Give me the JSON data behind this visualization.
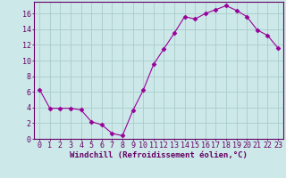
{
  "x": [
    0,
    1,
    2,
    3,
    4,
    5,
    6,
    7,
    8,
    9,
    10,
    11,
    12,
    13,
    14,
    15,
    16,
    17,
    18,
    19,
    20,
    21,
    22,
    23
  ],
  "y": [
    6.3,
    3.9,
    3.9,
    3.9,
    3.7,
    2.2,
    1.8,
    0.7,
    0.4,
    3.6,
    6.2,
    9.5,
    11.5,
    13.5,
    15.6,
    15.3,
    16.0,
    16.5,
    17.0,
    16.4,
    15.6,
    13.9,
    13.2,
    11.6
  ],
  "line_color": "#990099",
  "marker": "D",
  "marker_size": 2.5,
  "bg_color": "#cce8e8",
  "grid_color": "#aacccc",
  "xlabel": "Windchill (Refroidissement éolien,°C)",
  "ylabel": "",
  "xlim": [
    -0.5,
    23.5
  ],
  "ylim": [
    0,
    17.5
  ],
  "yticks": [
    0,
    2,
    4,
    6,
    8,
    10,
    12,
    14,
    16
  ],
  "xticks": [
    0,
    1,
    2,
    3,
    4,
    5,
    6,
    7,
    8,
    9,
    10,
    11,
    12,
    13,
    14,
    15,
    16,
    17,
    18,
    19,
    20,
    21,
    22,
    23
  ],
  "tick_color": "#660066",
  "axis_color": "#660066",
  "label_fontsize": 6.5,
  "tick_fontsize": 6.0
}
